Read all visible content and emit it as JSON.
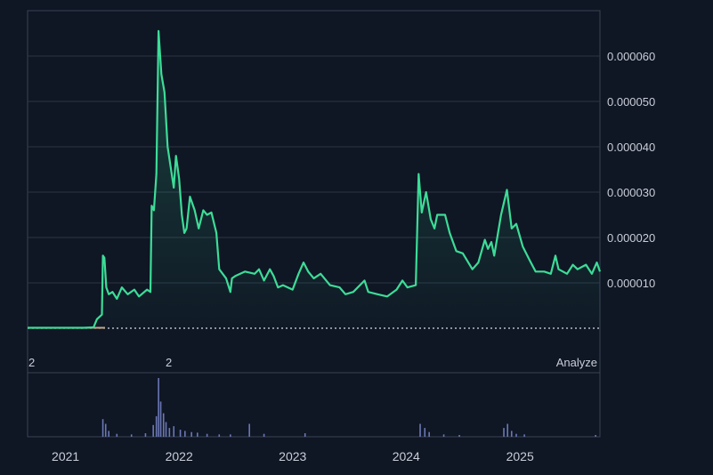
{
  "colors": {
    "background": "#0f1624",
    "grid": "#2c3545",
    "frame": "#3a4455",
    "line": "#3ddc97",
    "volume": "#6b78b4",
    "baseline_dotted": "#d8dde6",
    "baseline_solid": "#c4a98a"
  },
  "overlay": {
    "label_left": "2",
    "label_mid": "2",
    "analyze": "Analyze"
  },
  "chart_data": {
    "type": "area",
    "title": "",
    "xlabel": "",
    "ylabel": "",
    "y_axis_side": "right",
    "ylim": [
      0,
      7e-05
    ],
    "yticks": [
      "0.000010",
      "0.000020",
      "0.000030",
      "0.000040",
      "0.000050",
      "0.000060"
    ],
    "xticks": [
      "2021",
      "2022",
      "2023",
      "2024",
      "2025"
    ],
    "xlim": [
      "2020-09-01",
      "2025-09-15"
    ],
    "grid": true,
    "series": [
      {
        "points": [
          [
            "2020-09-01",
            1e-07
          ],
          [
            "2021-03-01",
            1e-07
          ],
          [
            "2021-04-01",
            2e-07
          ],
          [
            "2021-04-12",
            2e-06
          ],
          [
            "2021-04-28",
            3e-06
          ],
          [
            "2021-05-01",
            1.6e-05
          ],
          [
            "2021-05-06",
            1.55e-05
          ],
          [
            "2021-05-12",
            9e-06
          ],
          [
            "2021-05-20",
            7.5e-06
          ],
          [
            "2021-06-01",
            8e-06
          ],
          [
            "2021-06-15",
            6.5e-06
          ],
          [
            "2021-07-01",
            9e-06
          ],
          [
            "2021-07-20",
            7.5e-06
          ],
          [
            "2021-08-10",
            8.5e-06
          ],
          [
            "2021-08-25",
            7e-06
          ],
          [
            "2021-09-20",
            8.5e-06
          ],
          [
            "2021-10-01",
            8e-06
          ],
          [
            "2021-10-05",
            2.7e-05
          ],
          [
            "2021-10-12",
            2.6e-05
          ],
          [
            "2021-10-20",
            3.4e-05
          ],
          [
            "2021-10-27",
            6.55e-05
          ],
          [
            "2021-11-05",
            5.6e-05
          ],
          [
            "2021-11-15",
            5.2e-05
          ],
          [
            "2021-11-25",
            4e-05
          ],
          [
            "2021-12-15",
            3.1e-05
          ],
          [
            "2021-12-22",
            3.8e-05
          ],
          [
            "2022-01-01",
            3.3e-05
          ],
          [
            "2022-01-10",
            2.5e-05
          ],
          [
            "2022-01-18",
            2.1e-05
          ],
          [
            "2022-01-25",
            2.2e-05
          ],
          [
            "2022-02-05",
            2.9e-05
          ],
          [
            "2022-02-20",
            2.6e-05
          ],
          [
            "2022-03-05",
            2.2e-05
          ],
          [
            "2022-03-20",
            2.6e-05
          ],
          [
            "2022-04-01",
            2.5e-05
          ],
          [
            "2022-04-15",
            2.55e-05
          ],
          [
            "2022-05-01",
            2.1e-05
          ],
          [
            "2022-05-10",
            1.3e-05
          ],
          [
            "2022-06-01",
            1.1e-05
          ],
          [
            "2022-06-15",
            8e-06
          ],
          [
            "2022-06-20",
            1.1e-05
          ],
          [
            "2022-07-01",
            1.15e-05
          ],
          [
            "2022-08-01",
            1.25e-05
          ],
          [
            "2022-09-01",
            1.2e-05
          ],
          [
            "2022-09-15",
            1.3e-05
          ],
          [
            "2022-10-01",
            1.05e-05
          ],
          [
            "2022-10-20",
            1.3e-05
          ],
          [
            "2022-11-01",
            1.15e-05
          ],
          [
            "2022-11-15",
            9e-06
          ],
          [
            "2022-12-01",
            9.5e-06
          ],
          [
            "2023-01-01",
            8.5e-06
          ],
          [
            "2023-01-20",
            1.2e-05
          ],
          [
            "2023-02-05",
            1.45e-05
          ],
          [
            "2023-02-20",
            1.25e-05
          ],
          [
            "2023-03-10",
            1.1e-05
          ],
          [
            "2023-04-01",
            1.2e-05
          ],
          [
            "2023-05-01",
            9.5e-06
          ],
          [
            "2023-06-01",
            9e-06
          ],
          [
            "2023-06-20",
            7.5e-06
          ],
          [
            "2023-07-15",
            8e-06
          ],
          [
            "2023-08-20",
            1.05e-05
          ],
          [
            "2023-09-01",
            8e-06
          ],
          [
            "2023-10-01",
            7.5e-06
          ],
          [
            "2023-11-01",
            7e-06
          ],
          [
            "2023-12-01",
            8.5e-06
          ],
          [
            "2023-12-20",
            1.05e-05
          ],
          [
            "2024-01-05",
            9e-06
          ],
          [
            "2024-02-01",
            9.5e-06
          ],
          [
            "2024-02-10",
            3.4e-05
          ],
          [
            "2024-02-20",
            2.55e-05
          ],
          [
            "2024-03-05",
            3e-05
          ],
          [
            "2024-03-20",
            2.4e-05
          ],
          [
            "2024-04-01",
            2.2e-05
          ],
          [
            "2024-04-10",
            2.5e-05
          ],
          [
            "2024-05-05",
            2.5e-05
          ],
          [
            "2024-05-20",
            2.1e-05
          ],
          [
            "2024-06-10",
            1.7e-05
          ],
          [
            "2024-07-01",
            1.65e-05
          ],
          [
            "2024-08-01",
            1.3e-05
          ],
          [
            "2024-08-20",
            1.45e-05
          ],
          [
            "2024-09-10",
            1.95e-05
          ],
          [
            "2024-09-20",
            1.75e-05
          ],
          [
            "2024-10-01",
            1.9e-05
          ],
          [
            "2024-10-10",
            1.6e-05
          ],
          [
            "2024-11-01",
            2.5e-05
          ],
          [
            "2024-11-20",
            3.05e-05
          ],
          [
            "2024-12-05",
            2.2e-05
          ],
          [
            "2024-12-20",
            2.3e-05
          ],
          [
            "2025-01-10",
            1.8e-05
          ],
          [
            "2025-02-01",
            1.5e-05
          ],
          [
            "2025-02-20",
            1.25e-05
          ],
          [
            "2025-03-20",
            1.25e-05
          ],
          [
            "2025-04-10",
            1.2e-05
          ],
          [
            "2025-04-25",
            1.6e-05
          ],
          [
            "2025-05-05",
            1.3e-05
          ],
          [
            "2025-06-01",
            1.2e-05
          ],
          [
            "2025-06-20",
            1.4e-05
          ],
          [
            "2025-07-05",
            1.3e-05
          ],
          [
            "2025-08-01",
            1.4e-05
          ],
          [
            "2025-08-20",
            1.2e-05
          ],
          [
            "2025-09-05",
            1.45e-05
          ],
          [
            "2025-09-15",
            1.25e-05
          ]
        ]
      }
    ],
    "volume": [
      [
        "2021-05-01",
        0.3
      ],
      [
        "2021-05-10",
        0.22
      ],
      [
        "2021-05-20",
        0.1
      ],
      [
        "2021-06-15",
        0.05
      ],
      [
        "2021-08-01",
        0.04
      ],
      [
        "2021-09-15",
        0.06
      ],
      [
        "2021-10-10",
        0.2
      ],
      [
        "2021-10-20",
        0.35
      ],
      [
        "2021-10-27",
        1.0
      ],
      [
        "2021-11-03",
        0.6
      ],
      [
        "2021-11-12",
        0.4
      ],
      [
        "2021-11-20",
        0.25
      ],
      [
        "2021-12-01",
        0.15
      ],
      [
        "2021-12-15",
        0.18
      ],
      [
        "2022-01-05",
        0.12
      ],
      [
        "2022-01-20",
        0.1
      ],
      [
        "2022-02-10",
        0.08
      ],
      [
        "2022-03-01",
        0.07
      ],
      [
        "2022-04-01",
        0.05
      ],
      [
        "2022-05-10",
        0.04
      ],
      [
        "2022-06-15",
        0.04
      ],
      [
        "2022-08-15",
        0.22
      ],
      [
        "2022-10-01",
        0.05
      ],
      [
        "2023-02-10",
        0.06
      ],
      [
        "2024-02-15",
        0.22
      ],
      [
        "2024-03-01",
        0.15
      ],
      [
        "2024-03-15",
        0.08
      ],
      [
        "2024-05-01",
        0.04
      ],
      [
        "2024-06-20",
        0.03
      ],
      [
        "2024-11-10",
        0.15
      ],
      [
        "2024-11-22",
        0.22
      ],
      [
        "2024-12-05",
        0.1
      ],
      [
        "2024-12-20",
        0.05
      ],
      [
        "2025-01-15",
        0.04
      ],
      [
        "2025-09-01",
        0.03
      ]
    ]
  }
}
